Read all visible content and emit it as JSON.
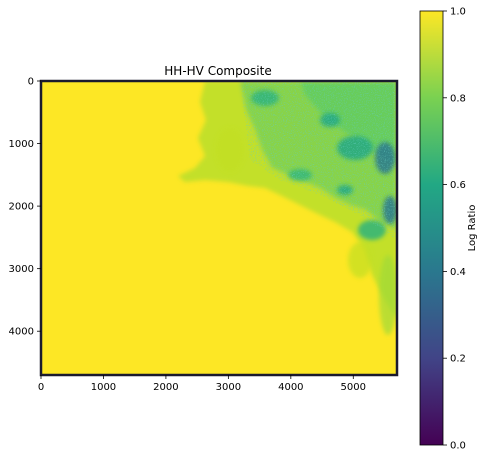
{
  "chart_data": {
    "type": "heatmap",
    "title": "HH-HV Composite",
    "xlabel": "",
    "ylabel": "",
    "xlim": [
      0,
      5700
    ],
    "ylim": [
      4700,
      0
    ],
    "x_ticks": [
      0,
      1000,
      2000,
      3000,
      4000,
      5000
    ],
    "y_ticks": [
      0,
      1000,
      2000,
      3000,
      4000
    ],
    "colormap": "viridis",
    "colorbar": {
      "label": "Log Ratio",
      "range": [
        0.0,
        1.0
      ],
      "ticks": [
        "0.0",
        "0.2",
        "0.4",
        "0.6",
        "0.8",
        "1.0"
      ]
    },
    "description_values": {
      "dominant_value": 1.0,
      "upper_right_region_range": [
        0.45,
        1.0
      ]
    }
  },
  "colors": {
    "yellow": "#fde725",
    "viridis_stops": [
      "#440154",
      "#414487",
      "#2a788e",
      "#22a884",
      "#7ad151",
      "#fde725"
    ],
    "frame": "#1a1a2e"
  }
}
